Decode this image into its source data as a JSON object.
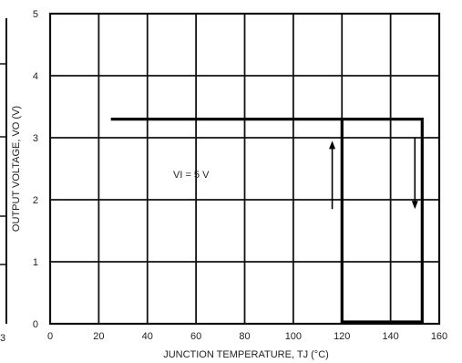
{
  "chart_data": {
    "type": "line",
    "title": "",
    "xlabel": "JUNCTION TEMPERATURE, TJ (°C)",
    "ylabel": "OUTPUT VOLTAGE, VO (V)",
    "xlim": [
      0,
      160
    ],
    "ylim": [
      0,
      5
    ],
    "x_ticks": [
      0,
      20,
      40,
      60,
      80,
      100,
      120,
      140,
      160
    ],
    "y_ticks": [
      0,
      1,
      2,
      3,
      4,
      5
    ],
    "grid": true,
    "left_edge_partial_labels": [
      "3"
    ],
    "annotations": [
      {
        "text": "VI = 5 V"
      }
    ],
    "series": [
      {
        "values": [
          {
            "x": 25,
            "y": 3.3
          },
          {
            "x": 153,
            "y": 3.3
          },
          {
            "x": 153,
            "y": 0.03
          },
          {
            "x": 120,
            "y": 0.03
          },
          {
            "x": 120,
            "y": 3.3
          }
        ]
      }
    ],
    "arrows": [
      {
        "direction": "up",
        "x": 116,
        "y_from": 1.85,
        "y_to": 2.95
      },
      {
        "direction": "down",
        "x": 150,
        "y_from": 3.0,
        "y_to": 1.85
      }
    ]
  }
}
